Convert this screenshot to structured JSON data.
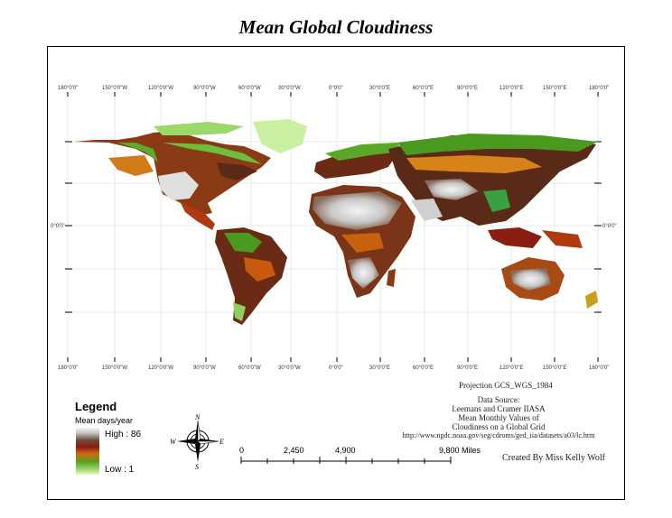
{
  "title": "Mean Global Cloudiness",
  "graticule": {
    "lon_labels": [
      "180°0'0\"",
      "150°0'0\"W",
      "120°0'0\"W",
      "90°0'0\"W",
      "60°0'0\"W",
      "30°0'0\"W",
      "0°0'0\"",
      "30°0'0\"E",
      "60°0'0\"E",
      "90°0'0\"E",
      "120°0'0\"E",
      "150°0'0\"E",
      "180°0'0\""
    ],
    "equator_label": "0°0'0\""
  },
  "legend": {
    "title": "Legend",
    "subtitle": "Mean days/year",
    "high": "High : 86",
    "low": "Low : 1",
    "colors": [
      "#ffffff",
      "#c8c8c8",
      "#6b4a3a",
      "#8b1a10",
      "#d06a10",
      "#5a9a20",
      "#8ecf60",
      "#e8f8c0"
    ]
  },
  "projection": "Projection GCS_WGS_1984",
  "data_source": [
    "Data Source:",
    "Leemans and Cramer IIASA",
    "Mean Monthly Values of",
    "Cloudiness on a Global Grid",
    "http://www.ngdc.noaa.gov/seg/cdroms/ged_iia/datasets/a03/lc.htm"
  ],
  "credit": "Created By Miss Kelly Wolf",
  "scale": {
    "labels": [
      "0",
      "2,450",
      "4,900",
      "9,800 Miles"
    ]
  },
  "compass": {
    "n": "N",
    "s": "S",
    "e": "E",
    "w": "W"
  }
}
